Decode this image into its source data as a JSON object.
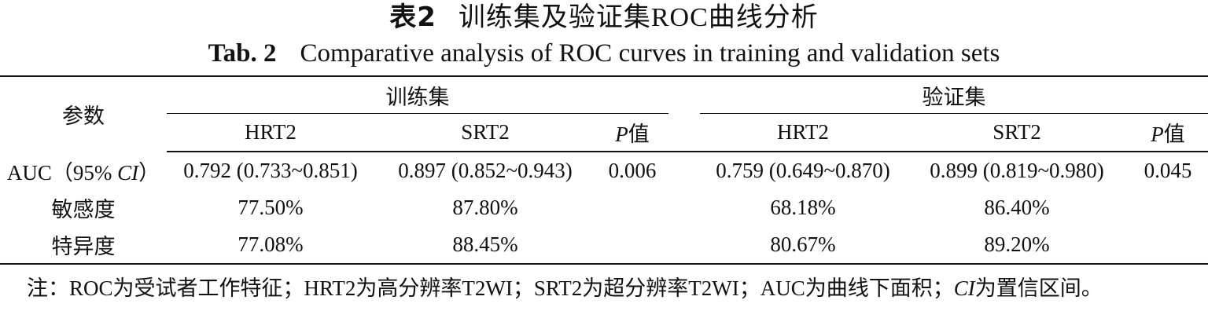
{
  "title": {
    "cn_label": "表2",
    "cn_text": "训练集及验证集ROC曲线分析",
    "en_label": "Tab. 2",
    "en_text": "Comparative analysis of ROC curves in training and validation sets"
  },
  "table": {
    "param_header": "参数",
    "group_training": "训练集",
    "group_validation": "验证集",
    "sub_headers": [
      "HRT2",
      "SRT2",
      "P值",
      "HRT2",
      "SRT2",
      "P值"
    ],
    "rows": [
      {
        "label_prefix": "AUC（95% ",
        "label_italic": "CI",
        "label_suffix": "）",
        "cells": [
          "0.792 (0.733~0.851)",
          "0.897 (0.852~0.943)",
          "0.006",
          "0.759 (0.649~0.870)",
          "0.899 (0.819~0.980)",
          "0.045"
        ]
      },
      {
        "label": "敏感度",
        "cells": [
          "77.50%",
          "87.80%",
          "",
          "68.18%",
          "86.40%",
          ""
        ]
      },
      {
        "label": "特异度",
        "cells": [
          "77.08%",
          "88.45%",
          "",
          "80.67%",
          "89.20%",
          ""
        ]
      }
    ]
  },
  "note": {
    "part1": "注：ROC为受试者工作特征；HRT2为高分辨率T2WI；SRT2为超分辨率T2WI；AUC为曲线下面积；",
    "ci": "CI",
    "part2": "为置信区间。"
  }
}
